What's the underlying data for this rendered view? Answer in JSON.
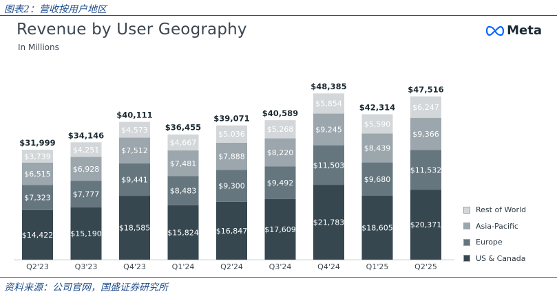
{
  "figure_caption": "图表2：营收按用户地区",
  "source_caption": "资料来源：公司官网，国盛证券研究所",
  "brand": {
    "name": "Meta",
    "icon": "meta-infinity-logo"
  },
  "colors": {
    "us_canada": "#36474f",
    "europe": "#66767f",
    "asia_pacific": "#9ba6ad",
    "rest_of_world": "#d3d7da",
    "axis": "#b9bec2",
    "label_dark": "#1c2b33"
  },
  "chart_data": {
    "type": "bar",
    "stacked": true,
    "title": "Revenue by User Geography",
    "subtitle": "In Millions",
    "categories": [
      "Q2'23",
      "Q3'23",
      "Q4'23",
      "Q1'24",
      "Q2'24",
      "Q3'24",
      "Q4'24",
      "Q1'25",
      "Q2'25"
    ],
    "series": [
      {
        "name": "US & Canada",
        "values": [
          14422,
          15190,
          18585,
          15824,
          16847,
          17609,
          21783,
          18605,
          20371
        ],
        "labels": [
          "$14,422",
          "$15,190",
          "$18,585",
          "$15,824",
          "$16,847",
          "$17,609",
          "$21,783",
          "$18,605",
          "$20,371"
        ]
      },
      {
        "name": "Europe",
        "values": [
          7323,
          7777,
          9441,
          8483,
          9300,
          9492,
          11503,
          9680,
          11532
        ],
        "labels": [
          "$7,323",
          "$7,777",
          "$9,441",
          "$8,483",
          "$9,300",
          "$9,492",
          "$11,503",
          "$9,680",
          "$11,532"
        ]
      },
      {
        "name": "Asia-Pacific",
        "values": [
          6515,
          6928,
          7512,
          7481,
          7888,
          8220,
          9245,
          8439,
          9366
        ],
        "labels": [
          "$6,515",
          "$6,928",
          "$7,512",
          "$7,481",
          "$7,888",
          "$8,220",
          "$9,245",
          "$8,439",
          "$9,366"
        ]
      },
      {
        "name": "Rest of World",
        "values": [
          3739,
          4251,
          4573,
          4667,
          5036,
          5268,
          5854,
          5590,
          6247
        ],
        "labels": [
          "$3,739",
          "$4,251",
          "$4,573",
          "$4,667",
          "$5,036",
          "$5,268",
          "$5,854",
          "$5,590",
          "$6,247"
        ]
      }
    ],
    "totals": [
      31999,
      34146,
      40111,
      36455,
      39071,
      40589,
      48385,
      42314,
      47516
    ],
    "total_labels": [
      "$31,999",
      "$34,146",
      "$40,111",
      "$36,455",
      "$39,071",
      "$40,589",
      "$48,385",
      "$42,314",
      "$47,516"
    ],
    "legend": [
      "Rest of World",
      "Asia-Pacific",
      "Europe",
      "US & Canada"
    ],
    "legend_position": "right",
    "grid": false
  }
}
